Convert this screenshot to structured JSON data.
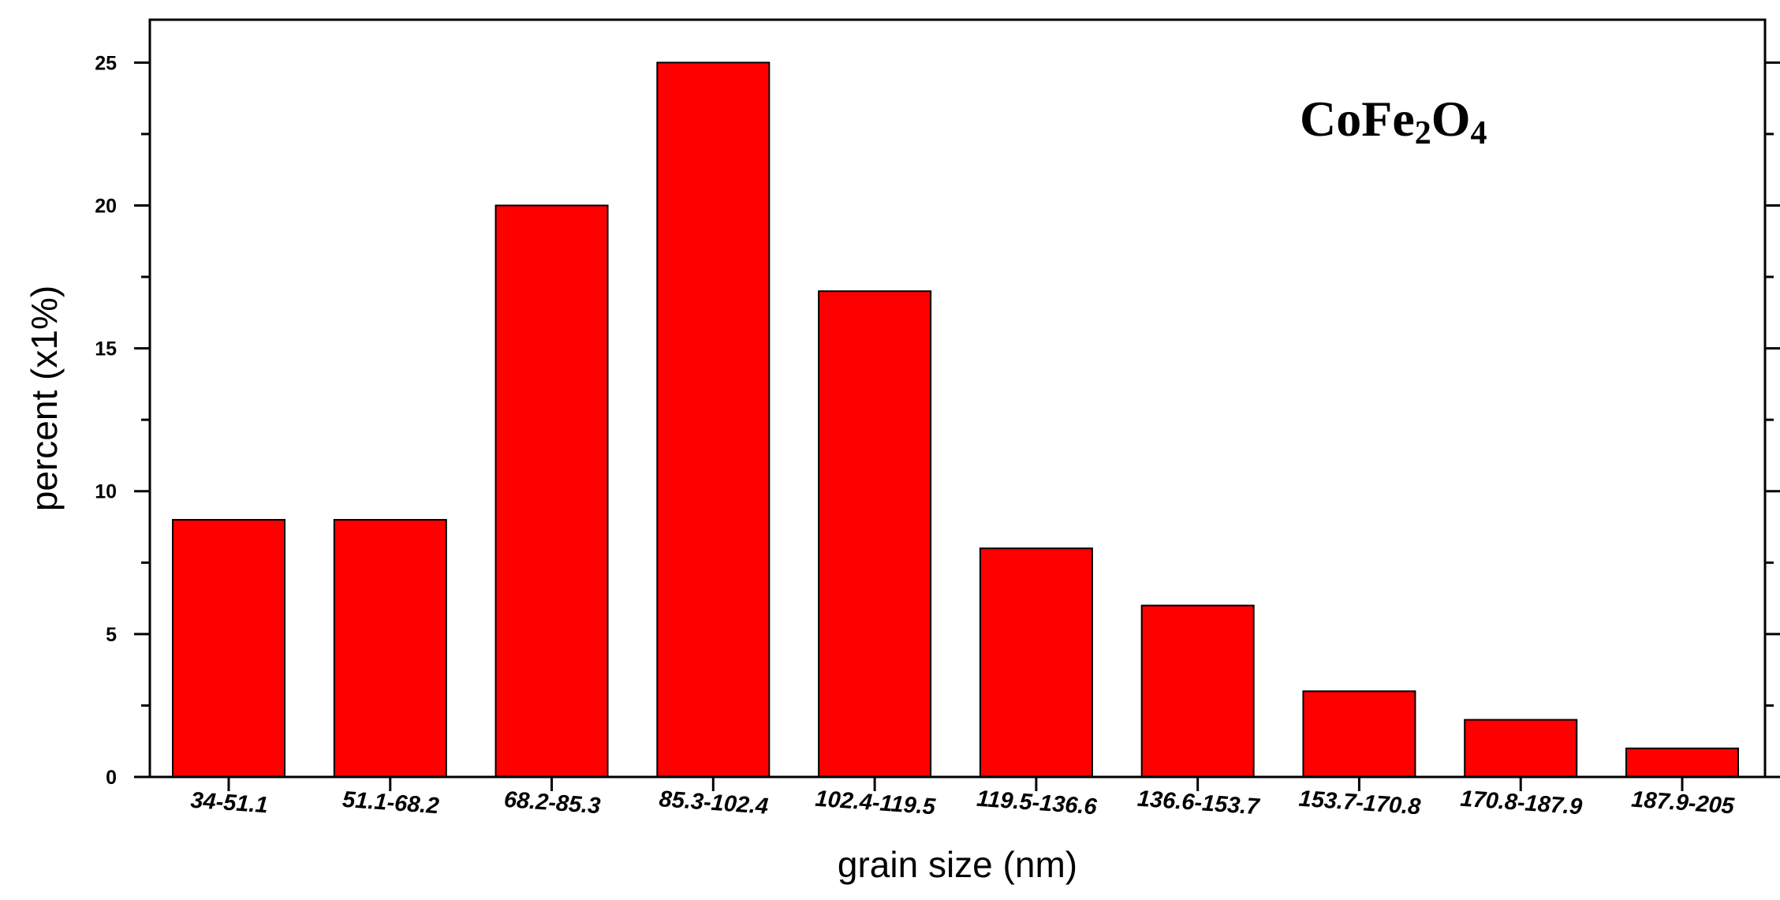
{
  "chart_data": {
    "type": "bar",
    "title": "",
    "xlabel": "grain size (nm)",
    "ylabel": "percent  (x1%)",
    "categories": [
      "34-51.1",
      "51.1-68.2",
      "68.2-85.3",
      "85.3-102.4",
      "102.4-119.5",
      "119.5-136.6",
      "136.6-153.7",
      "153.7-170.8",
      "170.8-187.9",
      "187.9-205"
    ],
    "values": [
      9,
      9,
      20,
      25,
      17,
      8,
      6,
      3,
      2,
      1
    ],
    "ylim": [
      0,
      26.5
    ],
    "yticks": [
      0,
      5,
      10,
      15,
      20,
      25
    ],
    "annotation": {
      "parts": [
        {
          "text": "CoFe",
          "sub": false
        },
        {
          "text": "2",
          "sub": true
        },
        {
          "text": "O",
          "sub": false
        },
        {
          "text": "4",
          "sub": true
        }
      ]
    },
    "bar_color": "#ff0000",
    "grid": false,
    "legend": "none"
  }
}
